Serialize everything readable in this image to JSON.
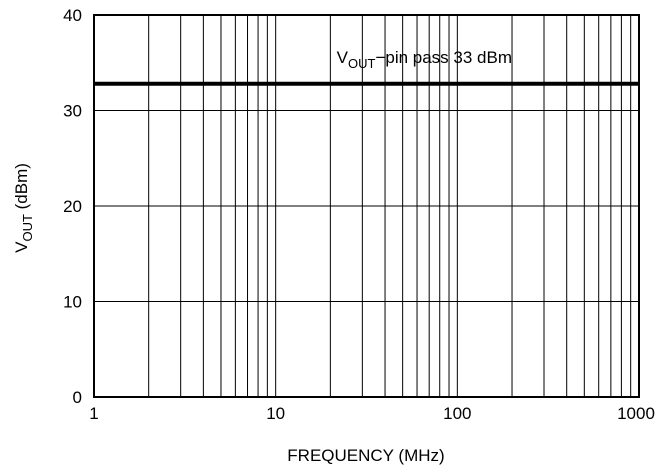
{
  "chart_data": {
    "type": "line",
    "xscale": "log",
    "xlim": [
      1,
      1000
    ],
    "ylim": [
      0,
      40
    ],
    "x_ticks": [
      {
        "value": 1,
        "label": "1"
      },
      {
        "value": 10,
        "label": "10"
      },
      {
        "value": 100,
        "label": "100"
      },
      {
        "value": 1000,
        "label": "1000"
      }
    ],
    "y_ticks": [
      {
        "value": 0,
        "label": "0"
      },
      {
        "value": 10,
        "label": "10"
      },
      {
        "value": 20,
        "label": "20"
      },
      {
        "value": 30,
        "label": "30"
      },
      {
        "value": 40,
        "label": "40"
      }
    ],
    "xlabel": "FREQUENCY (MHz)",
    "ylabel": {
      "main": "V",
      "sub": "OUT",
      "rest": " (dBm)"
    },
    "grid": true,
    "series": [
      {
        "name": "",
        "color": "#000000",
        "points": [
          {
            "x": 1,
            "y": 32.8
          },
          {
            "x": 1000,
            "y": 32.8
          }
        ]
      }
    ],
    "annotation": {
      "main": "V",
      "sub": "OUT",
      "rest": "−pin pass 33 dBm",
      "x": 100,
      "y": 35.6
    }
  }
}
